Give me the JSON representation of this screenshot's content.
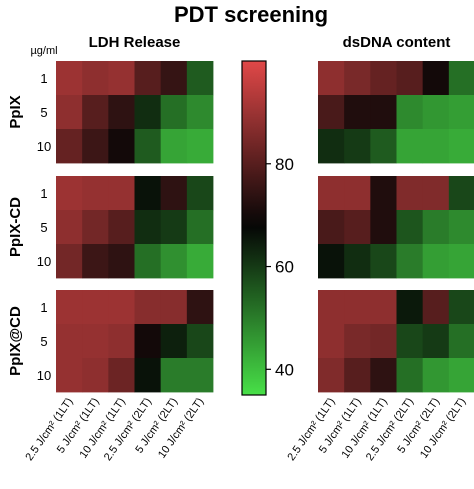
{
  "title": "PDT screening",
  "unit_label": "µg/ml",
  "colors": {
    "high": "#e04848",
    "mid": "#050505",
    "low": "#48e048",
    "separator": "#ffffff"
  },
  "chart_data": {
    "type": "heatmap",
    "title": "PDT screening",
    "groups": [
      "PpIX",
      "PpIX-CD",
      "PpIX@CD"
    ],
    "concentrations": [
      "1",
      "5",
      "10"
    ],
    "conditions": [
      "2.5 J/cm² (1LT)",
      "5 J/cm² (1LT)",
      "10 J/cm² (1LT)",
      "2.5 J/cm² (2LT)",
      "5 J/cm² (2LT)",
      "10 J/cm² (2LT)"
    ],
    "colorbar": {
      "min": 35,
      "max": 100,
      "center": 68,
      "ticks": [
        40,
        60,
        80
      ]
    },
    "panels": [
      {
        "name": "LDH Release",
        "values": [
          [
            90,
            88,
            89,
            80,
            75,
            55
          ],
          [
            88,
            80,
            74,
            62,
            52,
            48
          ],
          [
            82,
            76,
            70,
            55,
            44,
            43
          ],
          [
            90,
            89,
            89,
            66,
            74,
            58
          ],
          [
            88,
            84,
            80,
            62,
            60,
            52
          ],
          [
            84,
            76,
            74,
            52,
            47,
            43
          ],
          [
            90,
            90,
            90,
            87,
            87,
            74
          ],
          [
            89,
            89,
            88,
            70,
            64,
            58
          ],
          [
            89,
            88,
            83,
            66,
            50,
            50
          ]
        ]
      },
      {
        "name": "dsDNA content",
        "values": [
          [
            88,
            85,
            82,
            80,
            70,
            52
          ],
          [
            78,
            72,
            72,
            48,
            46,
            45
          ],
          [
            62,
            60,
            55,
            44,
            44,
            43
          ],
          [
            88,
            88,
            72,
            86,
            86,
            58
          ],
          [
            78,
            80,
            72,
            56,
            50,
            48
          ],
          [
            66,
            62,
            58,
            50,
            45,
            44
          ],
          [
            88,
            88,
            88,
            65,
            80,
            58
          ],
          [
            88,
            85,
            84,
            58,
            60,
            52
          ],
          [
            86,
            80,
            74,
            52,
            46,
            44
          ]
        ]
      }
    ]
  }
}
